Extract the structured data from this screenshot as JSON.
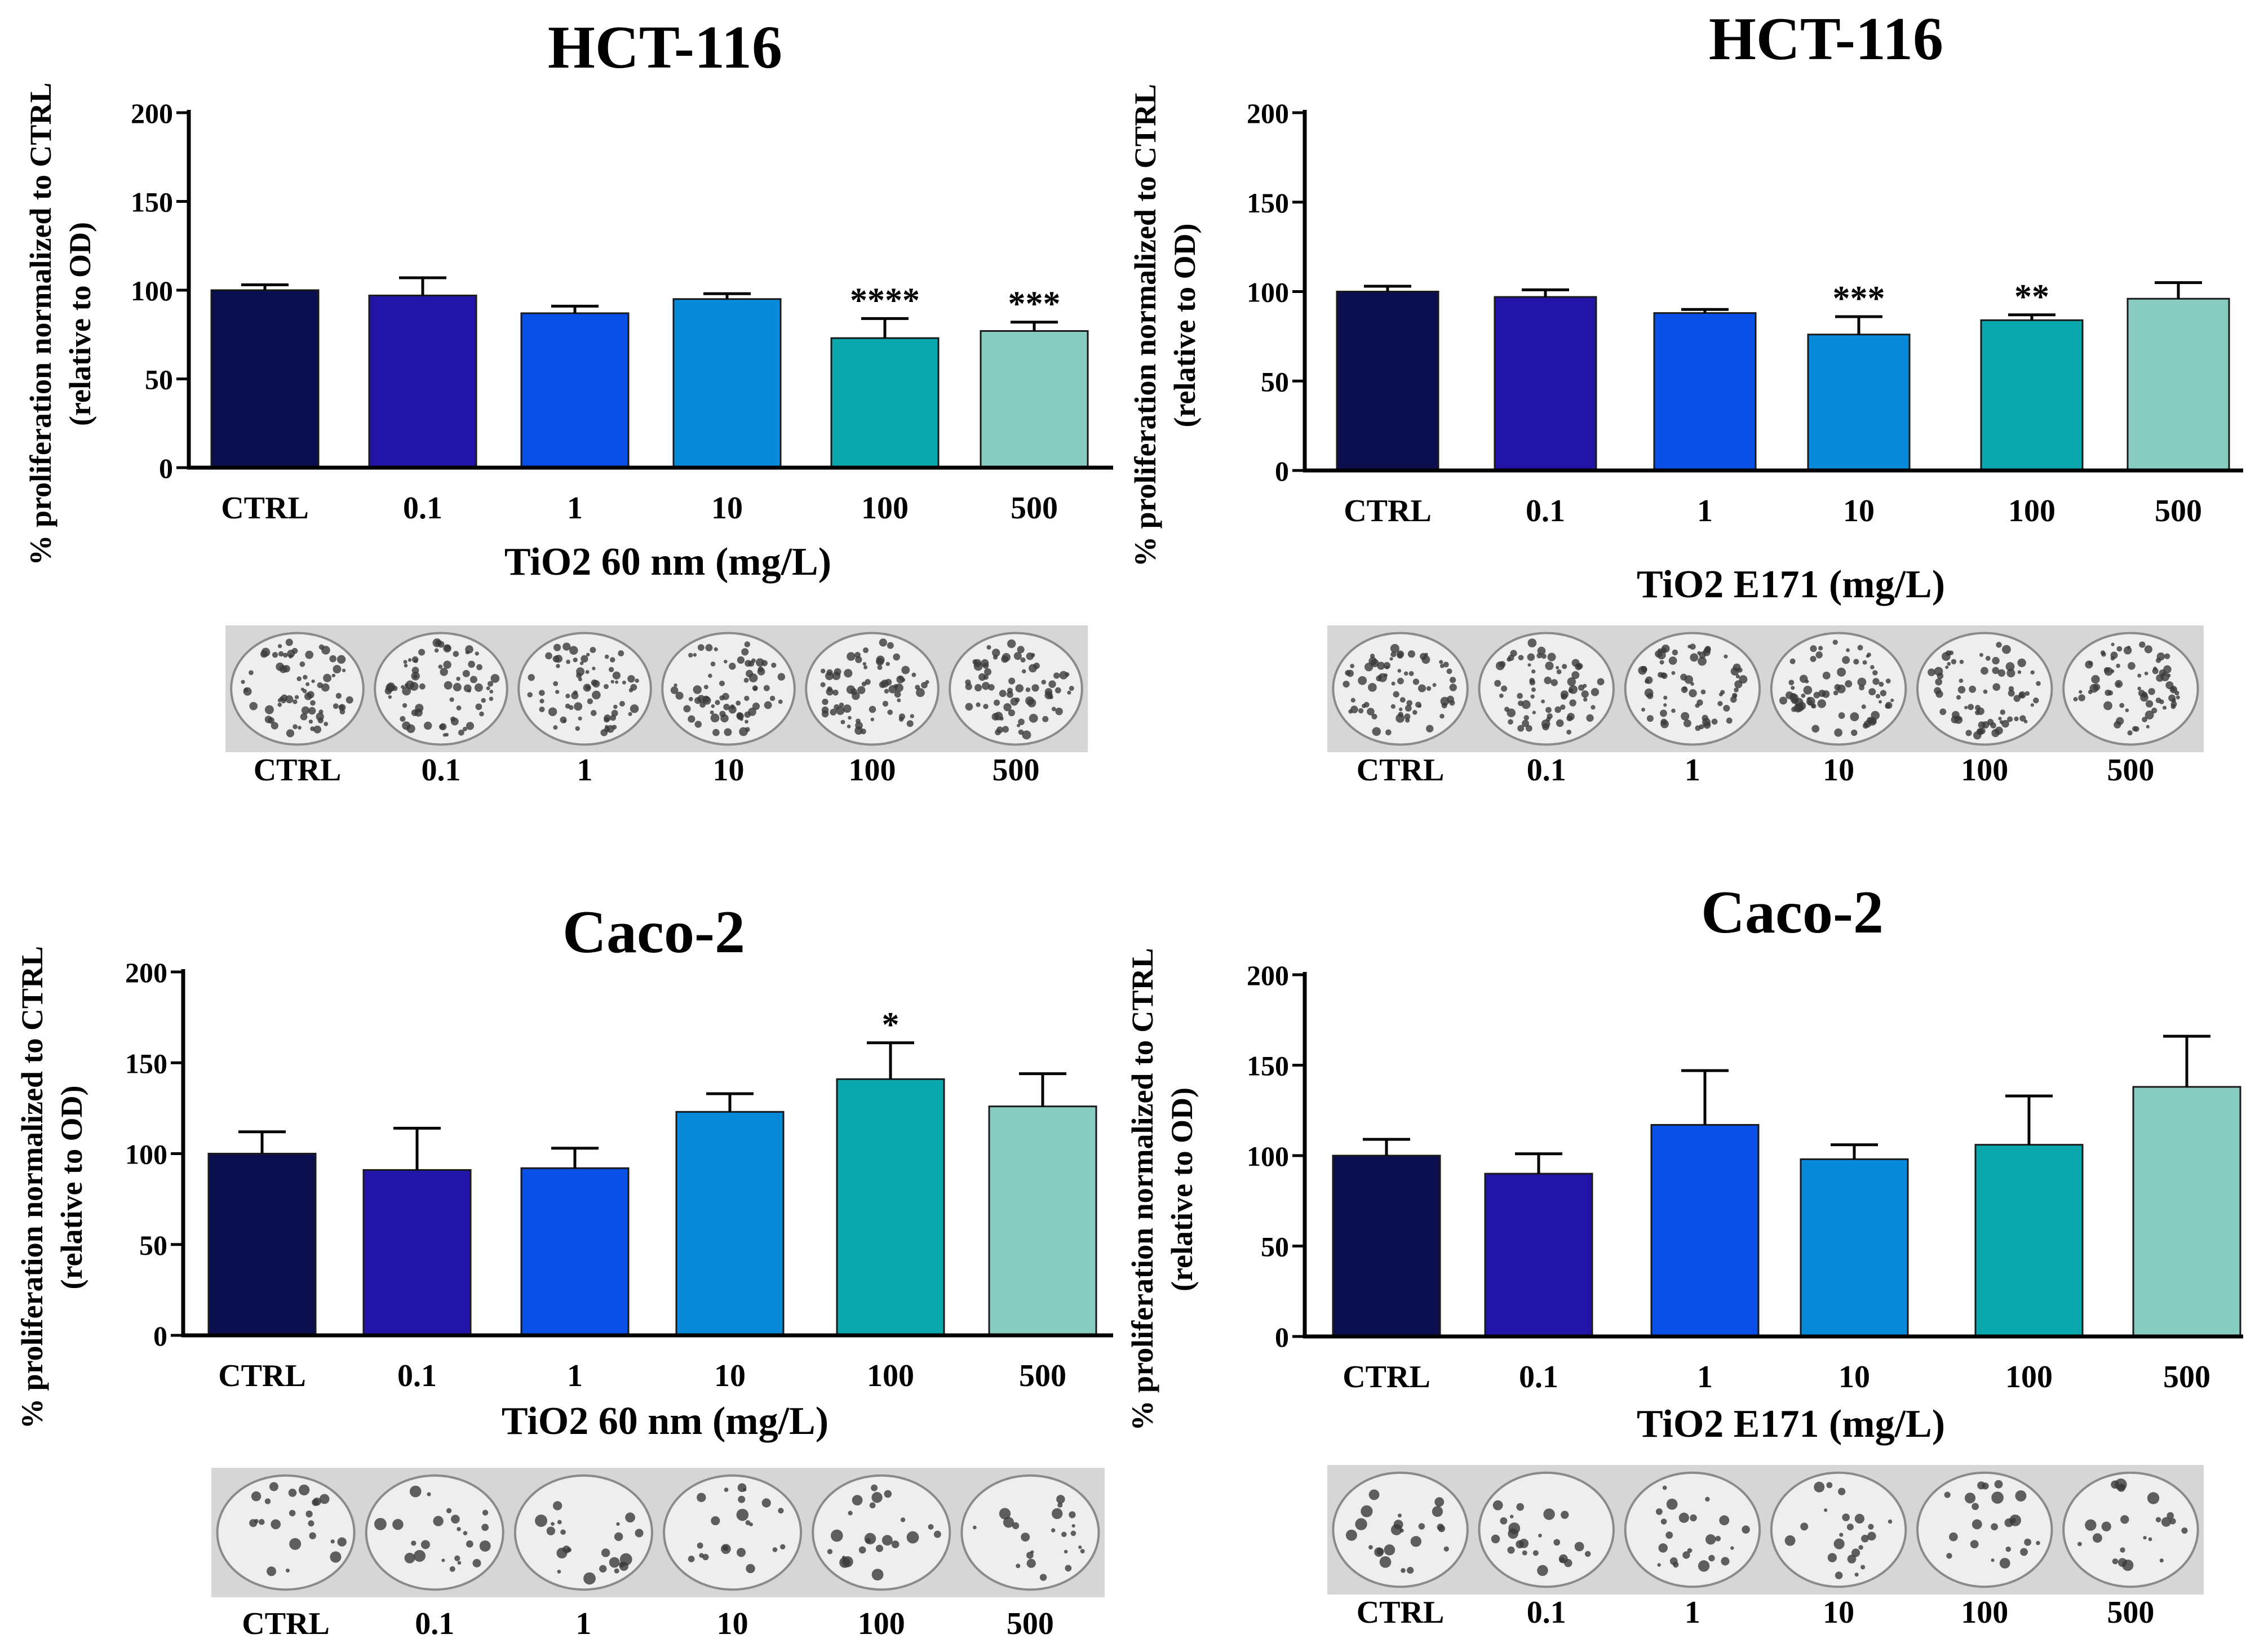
{
  "colors": {
    "bars": [
      "#0b0f4f",
      "#2314a8",
      "#0a50e6",
      "#0889d9",
      "#0aa7ad",
      "#88cbc0"
    ],
    "axis": "#000000",
    "plate_bg": "#d6d6d6",
    "plate_well": "#eeeeee",
    "colony": "#3a3a3a"
  },
  "chart_data": [
    {
      "type": "bar",
      "title": "HCT-116",
      "xlabel": "TiO2 60 nm (mg/L)",
      "ylabel": "% proliferation normalized to CTRL",
      "ylabel2": "(relative to OD)",
      "categories": [
        "CTRL",
        "0.1",
        "1",
        "10",
        "100",
        "500"
      ],
      "values": [
        100,
        97,
        87,
        95,
        73,
        77
      ],
      "errors": [
        3,
        10,
        4,
        3,
        11,
        5
      ],
      "significance": [
        "",
        "",
        "",
        "",
        "****",
        "***"
      ],
      "yticks": [
        "0",
        "50",
        "100",
        "150",
        "200"
      ],
      "ylim": [
        0,
        200
      ],
      "photo_labels": [
        "CTRL",
        "0.1",
        "1",
        "10",
        "100",
        "500"
      ]
    },
    {
      "type": "bar",
      "title": "HCT-116",
      "xlabel": "TiO2 E171 (mg/L)",
      "ylabel": "% proliferation normalized to CTRL",
      "ylabel2": "(relative to OD)",
      "categories": [
        "CTRL",
        "0.1",
        "1",
        "10",
        "100",
        "500"
      ],
      "values": [
        100,
        97,
        88,
        76,
        84,
        96
      ],
      "errors": [
        3,
        4,
        2,
        10,
        3,
        9
      ],
      "significance": [
        "",
        "",
        "",
        "***",
        "**",
        ""
      ],
      "yticks": [
        "0",
        "50",
        "100",
        "150",
        "200"
      ],
      "ylim": [
        0,
        200
      ],
      "photo_labels": [
        "CTRL",
        "0.1",
        "1",
        "10",
        "100",
        "500"
      ]
    },
    {
      "type": "bar",
      "title": "Caco-2",
      "xlabel": "TiO2 60 nm (mg/L)",
      "ylabel": "% proliferation normalized to CTRL",
      "ylabel2": "(relative to OD)",
      "categories": [
        "CTRL",
        "0.1",
        "1",
        "10",
        "100",
        "500"
      ],
      "values": [
        100,
        91,
        92,
        123,
        141,
        126
      ],
      "errors": [
        12,
        23,
        11,
        10,
        20,
        18
      ],
      "significance": [
        "",
        "",
        "",
        "",
        "*",
        ""
      ],
      "yticks": [
        "0",
        "50",
        "100",
        "150",
        "200"
      ],
      "ylim": [
        0,
        200
      ],
      "photo_labels": [
        "CTRL",
        "0.1",
        "1",
        "10",
        "100",
        "500"
      ]
    },
    {
      "type": "bar",
      "title": "Caco-2",
      "xlabel": "TiO2 E171 (mg/L)",
      "ylabel": "% proliferation normalized to CTRL",
      "ylabel2": "(relative to OD)",
      "categories": [
        "CTRL",
        "0.1",
        "1",
        "10",
        "100",
        "500"
      ],
      "values": [
        100,
        90,
        117,
        98,
        106,
        138
      ],
      "errors": [
        9,
        11,
        30,
        8,
        27,
        28
      ],
      "significance": [
        "",
        "",
        "",
        "",
        "",
        ""
      ],
      "yticks": [
        "0",
        "50",
        "100",
        "150",
        "200"
      ],
      "ylim": [
        0,
        200
      ],
      "photo_labels": [
        "CTRL",
        "0.1",
        "1",
        "10",
        "100",
        "500"
      ]
    }
  ]
}
